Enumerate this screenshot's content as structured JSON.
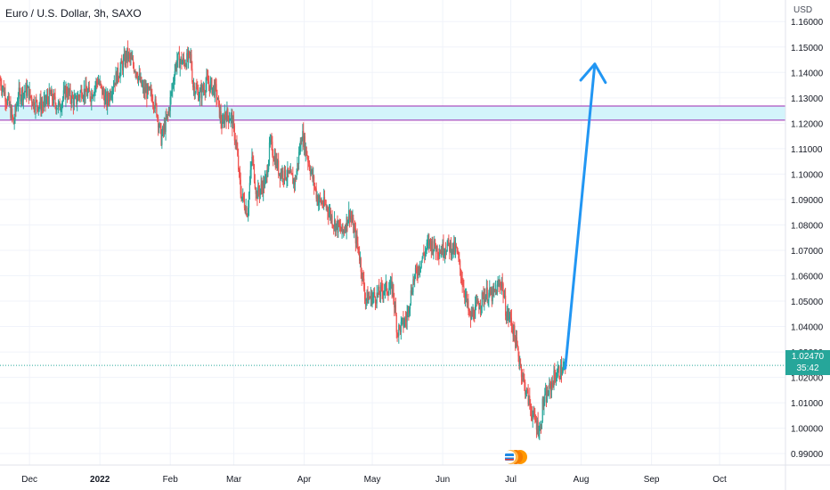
{
  "title": "Euro / U.S. Dollar, 3h, SAXO",
  "currency": "USD",
  "price_tag": {
    "price": "1.02470",
    "countdown": "35:42",
    "color": "#26a69a"
  },
  "colors": {
    "up": "#26a69a",
    "down": "#ef5350",
    "zone_fill": "#d3f4fb",
    "zone_line": "#9c27b0",
    "arrow": "#2196f3",
    "grid": "#f0f3fa"
  },
  "chart_data": {
    "type": "candlestick",
    "title": "Euro / U.S. Dollar, 3h, SAXO",
    "ylabel": "USD",
    "ylim": [
      0.9855,
      1.1685
    ],
    "y_ticks": [
      "0.99000",
      "1.00000",
      "1.01000",
      "1.02000",
      "1.03000",
      "1.04000",
      "1.05000",
      "1.06000",
      "1.07000",
      "1.08000",
      "1.09000",
      "1.10000",
      "1.11000",
      "1.12000",
      "1.13000",
      "1.14000",
      "1.15000",
      "1.16000"
    ],
    "x_ticks": [
      {
        "label": "Dec",
        "date": "2021-12-01"
      },
      {
        "label": "2022",
        "date": "2022-01-01",
        "bold": true
      },
      {
        "label": "Feb",
        "date": "2022-02-01"
      },
      {
        "label": "Mar",
        "date": "2022-03-01"
      },
      {
        "label": "Apr",
        "date": "2022-04-01"
      },
      {
        "label": "May",
        "date": "2022-05-01"
      },
      {
        "label": "Jun",
        "date": "2022-06-01"
      },
      {
        "label": "Jul",
        "date": "2022-07-01"
      },
      {
        "label": "Aug",
        "date": "2022-08-01"
      },
      {
        "label": "Sep",
        "date": "2022-09-01"
      },
      {
        "label": "Oct",
        "date": "2022-10-01"
      }
    ],
    "xlim": [
      "2021-11-18",
      "2022-10-30"
    ],
    "last_price": 1.0247,
    "price_path": [
      {
        "date": "2021-11-18",
        "close": 1.137
      },
      {
        "date": "2021-11-22",
        "close": 1.127
      },
      {
        "date": "2021-11-24",
        "close": 1.12
      },
      {
        "date": "2021-11-26",
        "close": 1.131
      },
      {
        "date": "2021-11-30",
        "close": 1.133
      },
      {
        "date": "2021-12-03",
        "close": 1.128
      },
      {
        "date": "2021-12-07",
        "close": 1.127
      },
      {
        "date": "2021-12-10",
        "close": 1.131
      },
      {
        "date": "2021-12-14",
        "close": 1.126
      },
      {
        "date": "2021-12-17",
        "close": 1.133
      },
      {
        "date": "2021-12-21",
        "close": 1.128
      },
      {
        "date": "2021-12-24",
        "close": 1.133
      },
      {
        "date": "2021-12-28",
        "close": 1.131
      },
      {
        "date": "2021-12-31",
        "close": 1.137
      },
      {
        "date": "2022-01-04",
        "close": 1.128
      },
      {
        "date": "2022-01-07",
        "close": 1.136
      },
      {
        "date": "2022-01-11",
        "close": 1.143
      },
      {
        "date": "2022-01-13",
        "close": 1.147
      },
      {
        "date": "2022-01-17",
        "close": 1.141
      },
      {
        "date": "2022-01-20",
        "close": 1.133
      },
      {
        "date": "2022-01-24",
        "close": 1.131
      },
      {
        "date": "2022-01-26",
        "close": 1.125
      },
      {
        "date": "2022-01-28",
        "close": 1.114
      },
      {
        "date": "2022-01-31",
        "close": 1.123
      },
      {
        "date": "2022-02-03",
        "close": 1.141
      },
      {
        "date": "2022-02-04",
        "close": 1.145
      },
      {
        "date": "2022-02-07",
        "close": 1.144
      },
      {
        "date": "2022-02-10",
        "close": 1.146
      },
      {
        "date": "2022-02-11",
        "close": 1.135
      },
      {
        "date": "2022-02-14",
        "close": 1.131
      },
      {
        "date": "2022-02-17",
        "close": 1.136
      },
      {
        "date": "2022-02-21",
        "close": 1.133
      },
      {
        "date": "2022-02-24",
        "close": 1.118
      },
      {
        "date": "2022-02-25",
        "close": 1.124
      },
      {
        "date": "2022-02-28",
        "close": 1.122
      },
      {
        "date": "2022-03-02",
        "close": 1.112
      },
      {
        "date": "2022-03-04",
        "close": 1.093
      },
      {
        "date": "2022-03-07",
        "close": 1.085
      },
      {
        "date": "2022-03-09",
        "close": 1.107
      },
      {
        "date": "2022-03-11",
        "close": 1.092
      },
      {
        "date": "2022-03-15",
        "close": 1.097
      },
      {
        "date": "2022-03-17",
        "close": 1.112
      },
      {
        "date": "2022-03-21",
        "close": 1.101
      },
      {
        "date": "2022-03-24",
        "close": 1.1
      },
      {
        "date": "2022-03-28",
        "close": 1.097
      },
      {
        "date": "2022-03-31",
        "close": 1.116
      },
      {
        "date": "2022-04-04",
        "close": 1.101
      },
      {
        "date": "2022-04-07",
        "close": 1.09
      },
      {
        "date": "2022-04-11",
        "close": 1.087
      },
      {
        "date": "2022-04-14",
        "close": 1.081
      },
      {
        "date": "2022-04-18",
        "close": 1.077
      },
      {
        "date": "2022-04-21",
        "close": 1.085
      },
      {
        "date": "2022-04-25",
        "close": 1.07
      },
      {
        "date": "2022-04-28",
        "close": 1.051
      },
      {
        "date": "2022-05-03",
        "close": 1.052
      },
      {
        "date": "2022-05-06",
        "close": 1.055
      },
      {
        "date": "2022-05-10",
        "close": 1.055
      },
      {
        "date": "2022-05-12",
        "close": 1.038
      },
      {
        "date": "2022-05-16",
        "close": 1.043
      },
      {
        "date": "2022-05-19",
        "close": 1.058
      },
      {
        "date": "2022-05-23",
        "close": 1.067
      },
      {
        "date": "2022-05-26",
        "close": 1.073
      },
      {
        "date": "2022-05-31",
        "close": 1.07
      },
      {
        "date": "2022-06-03",
        "close": 1.072
      },
      {
        "date": "2022-06-07",
        "close": 1.07
      },
      {
        "date": "2022-06-09",
        "close": 1.061
      },
      {
        "date": "2022-06-13",
        "close": 1.043
      },
      {
        "date": "2022-06-15",
        "close": 1.046
      },
      {
        "date": "2022-06-17",
        "close": 1.049
      },
      {
        "date": "2022-06-20",
        "close": 1.053
      },
      {
        "date": "2022-06-23",
        "close": 1.052
      },
      {
        "date": "2022-06-27",
        "close": 1.058
      },
      {
        "date": "2022-06-29",
        "close": 1.045
      },
      {
        "date": "2022-07-01",
        "close": 1.043
      },
      {
        "date": "2022-07-05",
        "close": 1.026
      },
      {
        "date": "2022-07-07",
        "close": 1.017
      },
      {
        "date": "2022-07-11",
        "close": 1.004
      },
      {
        "date": "2022-07-14",
        "close": 0.999
      },
      {
        "date": "2022-07-15",
        "close": 1.009
      },
      {
        "date": "2022-07-18",
        "close": 1.015
      },
      {
        "date": "2022-07-20",
        "close": 1.02
      },
      {
        "date": "2022-07-22",
        "close": 1.022
      },
      {
        "date": "2022-07-25",
        "close": 1.024
      }
    ],
    "annotations": [
      {
        "type": "zone",
        "y_top": 1.1268,
        "y_bottom": 1.1212
      },
      {
        "type": "arrow",
        "from": {
          "date": "2022-07-25",
          "value": 1.0236
        },
        "to": {
          "date": "2022-08-07",
          "value": 1.1433
        }
      }
    ]
  }
}
